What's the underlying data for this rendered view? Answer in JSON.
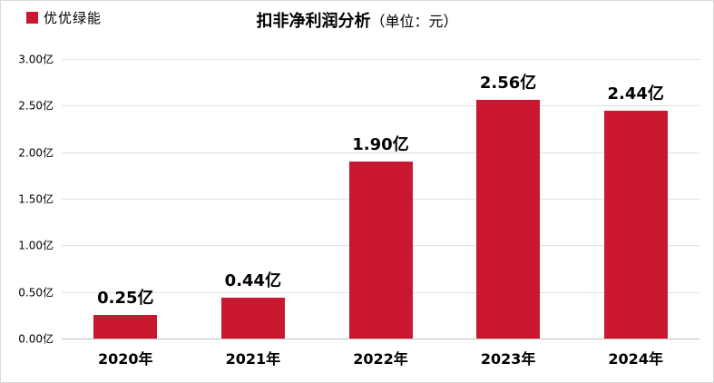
{
  "header": {
    "legend": {
      "label": "优优绿能",
      "marker_color": "#C9182F"
    },
    "title": "扣非净利润分析",
    "title_unit": "（单位：元）"
  },
  "chart_data": {
    "type": "bar",
    "title": "扣非净利润分析（单位：元）",
    "series_name": "优优绿能",
    "categories": [
      "2020年",
      "2021年",
      "2022年",
      "2023年",
      "2024年"
    ],
    "values": [
      0.25,
      0.44,
      1.9,
      2.56,
      2.44
    ],
    "value_labels": [
      "0.25亿",
      "0.44亿",
      "1.90亿",
      "2.56亿",
      "2.44亿"
    ],
    "y_ticks": [
      "3.00亿",
      "2.50亿",
      "2.00亿",
      "1.50亿",
      "1.00亿",
      "0.50亿",
      "0.00亿"
    ],
    "ylim": [
      0,
      3
    ],
    "bar_color": "#C9182F",
    "grid": "horizontal",
    "legend_position": "top-left"
  }
}
